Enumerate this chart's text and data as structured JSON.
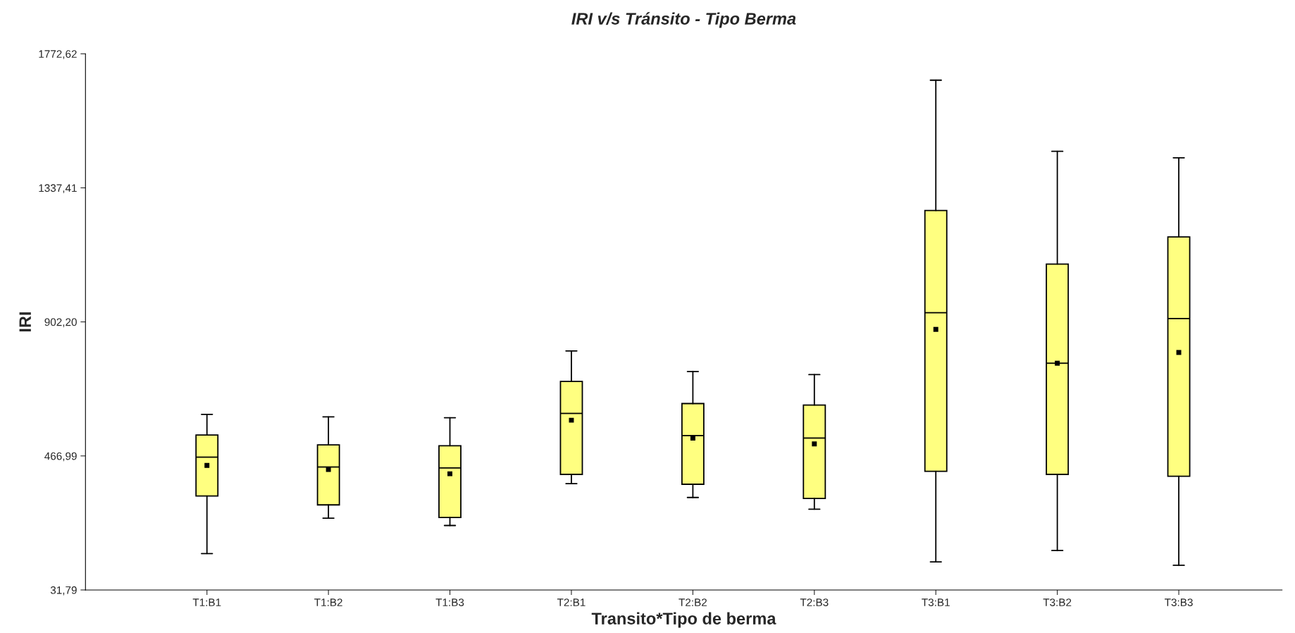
{
  "chart_data": {
    "type": "box",
    "title": "IRI v/s Tránsito - Tipo Berma",
    "xlabel": "Transito*Tipo de berma",
    "ylabel": "IRI",
    "categories": [
      "T1:B1",
      "T1:B2",
      "T1:B3",
      "T2:B1",
      "T2:B2",
      "T2:B3",
      "T3:B1",
      "T3:B2",
      "T3:B3"
    ],
    "color": "#ffff80",
    "marker": "square",
    "grid": false,
    "ylim": [
      31.79,
      1772.62
    ],
    "yticks": [
      {
        "value": 31.79,
        "label": "31,79"
      },
      {
        "value": 466.99,
        "label": "466,99"
      },
      {
        "value": 902.2,
        "label": "902,20"
      },
      {
        "value": 1337.41,
        "label": "1337,41"
      },
      {
        "value": 1772.62,
        "label": "1772,62"
      }
    ],
    "boxes": [
      {
        "low": 150,
        "q1": 337,
        "median": 463,
        "q3": 535,
        "high": 602,
        "mean": 436
      },
      {
        "low": 265,
        "q1": 308,
        "median": 431,
        "q3": 503,
        "high": 594,
        "mean": 423
      },
      {
        "low": 241,
        "q1": 267,
        "median": 428,
        "q3": 500,
        "high": 591,
        "mean": 409
      },
      {
        "low": 377,
        "q1": 407,
        "median": 605,
        "q3": 709,
        "high": 808,
        "mean": 583
      },
      {
        "low": 332,
        "q1": 375,
        "median": 533,
        "q3": 637,
        "high": 741,
        "mean": 525
      },
      {
        "low": 294,
        "q1": 329,
        "median": 525,
        "q3": 632,
        "high": 731,
        "mean": 506
      },
      {
        "low": 123,
        "q1": 417,
        "median": 932,
        "q3": 1264,
        "high": 1687,
        "mean": 878
      },
      {
        "low": 160,
        "q1": 407,
        "median": 768,
        "q3": 1090,
        "high": 1456,
        "mean": 768
      },
      {
        "low": 112,
        "q1": 401,
        "median": 913,
        "q3": 1178,
        "high": 1435,
        "mean": 803
      }
    ]
  }
}
